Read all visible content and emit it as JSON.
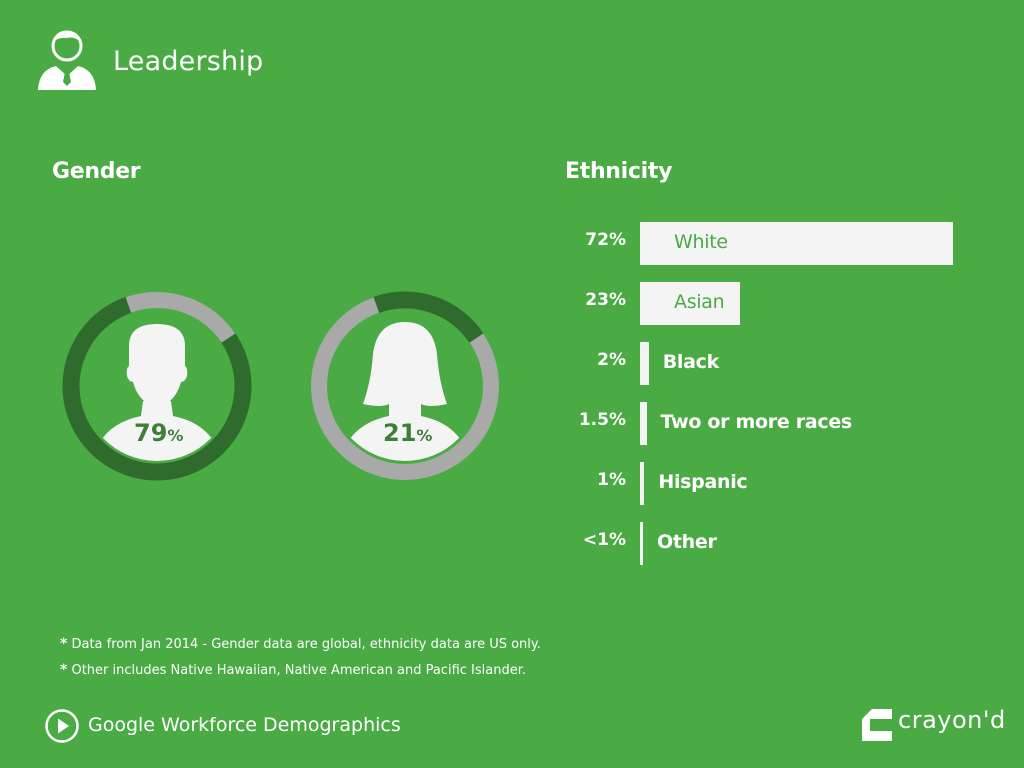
{
  "header": {
    "title": "Leadership",
    "icon": "businessman-icon"
  },
  "colors": {
    "background": "#4aab45",
    "ring_track": "#a9a9a9",
    "ring_fill": "#2f6b2c",
    "text_on_bar": "#4aab45",
    "bar": "#f4f4f4"
  },
  "chart_data": [
    {
      "type": "donut",
      "title": "Gender",
      "series": [
        {
          "name": "",
          "value": 79,
          "label": "79",
          "unit": "%"
        },
        {
          "name": "",
          "value": 21,
          "label": "21",
          "unit": "%"
        }
      ]
    },
    {
      "type": "bar",
      "orientation": "horizontal",
      "title": "Ethnicity",
      "categories": [
        "White",
        "Asian",
        "Black",
        "Two or more races",
        "Hispanic",
        "Other"
      ],
      "value_labels": [
        "72%",
        "23%",
        "2%",
        "1.5%",
        "1%",
        "<1%"
      ],
      "values": [
        72,
        23,
        2,
        1.5,
        1,
        0.5
      ]
    }
  ],
  "footnotes": [
    {
      "marker": "*",
      "text": "Data from Jan 2014 - Gender data are global, ethnicity data are US only."
    },
    {
      "marker": "*",
      "text": "Other includes Native Hawaiian, Native American and Pacific Islander."
    }
  ],
  "footer": {
    "title": "Google Workforce Demographics",
    "brand": "crayon'd"
  }
}
